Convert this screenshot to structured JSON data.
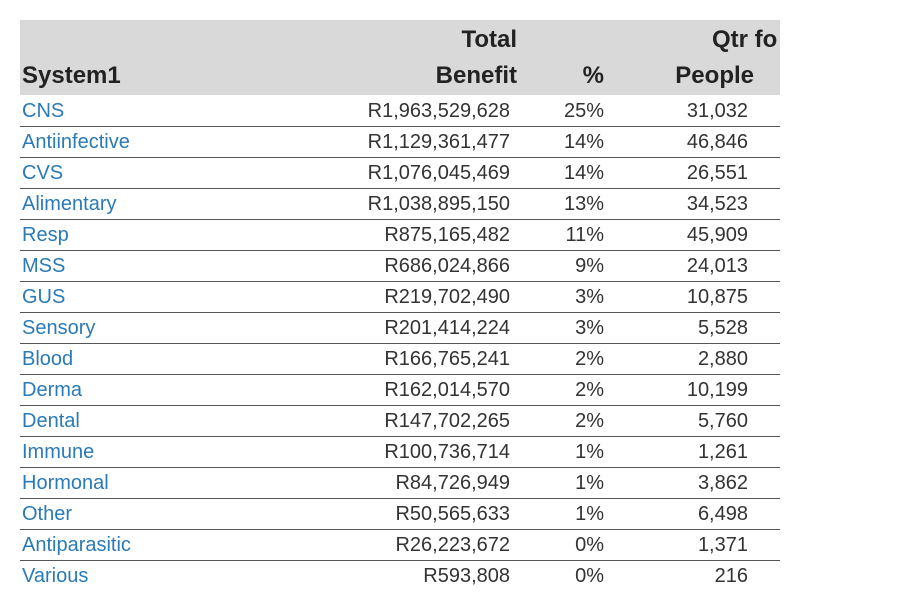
{
  "table": {
    "headers": {
      "system": "System1",
      "benefit_line1": "Total",
      "benefit_line2": "Benefit",
      "pct": "%",
      "people_line1": "Qtr fo",
      "people_line2": "People"
    },
    "rows": [
      {
        "system": "CNS",
        "benefit": "R1,963,529,628",
        "pct": "25%",
        "people": "31,032"
      },
      {
        "system": "Antiinfective",
        "benefit": "R1,129,361,477",
        "pct": "14%",
        "people": "46,846"
      },
      {
        "system": "CVS",
        "benefit": "R1,076,045,469",
        "pct": "14%",
        "people": "26,551"
      },
      {
        "system": "Alimentary",
        "benefit": "R1,038,895,150",
        "pct": "13%",
        "people": "34,523"
      },
      {
        "system": "Resp",
        "benefit": "R875,165,482",
        "pct": "11%",
        "people": "45,909"
      },
      {
        "system": "MSS",
        "benefit": "R686,024,866",
        "pct": "9%",
        "people": "24,013"
      },
      {
        "system": "GUS",
        "benefit": "R219,702,490",
        "pct": "3%",
        "people": "10,875"
      },
      {
        "system": "Sensory",
        "benefit": "R201,414,224",
        "pct": "3%",
        "people": "5,528"
      },
      {
        "system": "Blood",
        "benefit": "R166,765,241",
        "pct": "2%",
        "people": "2,880"
      },
      {
        "system": "Derma",
        "benefit": "R162,014,570",
        "pct": "2%",
        "people": "10,199"
      },
      {
        "system": "Dental",
        "benefit": "R147,702,265",
        "pct": "2%",
        "people": "5,760"
      },
      {
        "system": "Immune",
        "benefit": "R100,736,714",
        "pct": "1%",
        "people": "1,261"
      },
      {
        "system": "Hormonal",
        "benefit": "R84,726,949",
        "pct": "1%",
        "people": "3,862"
      },
      {
        "system": "Other",
        "benefit": "R50,565,633",
        "pct": "1%",
        "people": "6,498"
      },
      {
        "system": "Antiparasitic",
        "benefit": "R26,223,672",
        "pct": "0%",
        "people": "1,371"
      },
      {
        "system": "Various",
        "benefit": "R593,808",
        "pct": "0%",
        "people": "216"
      }
    ]
  }
}
